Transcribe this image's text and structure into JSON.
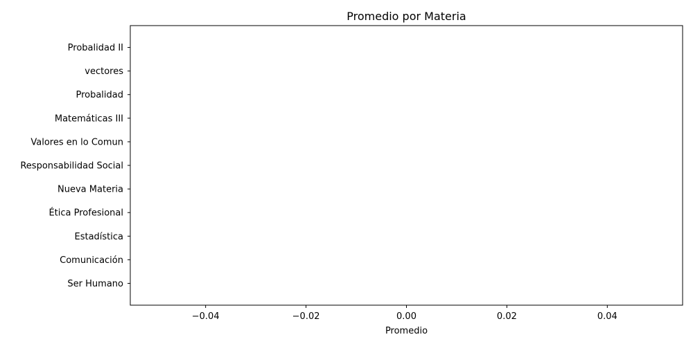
{
  "chart_data": {
    "type": "bar",
    "orientation": "horizontal",
    "title": "Promedio por Materia",
    "xlabel": "Promedio",
    "ylabel": "",
    "categories": [
      "Ser Humano",
      "Comunicación",
      "Estadística",
      "Ética Profesional",
      "Nueva Materia",
      "Responsabilidad Social ",
      "Valores en lo Comun",
      "Matemáticas III",
      "Probalidad",
      "vectores",
      "Probalidad II"
    ],
    "values": [
      0,
      0,
      0,
      0,
      0,
      0,
      0,
      0,
      0,
      0,
      0
    ],
    "xlim": [
      -0.055,
      0.055
    ],
    "xticks": [
      -0.04,
      -0.02,
      0.0,
      0.02,
      0.04
    ],
    "xtick_labels": [
      "−0.04",
      "−0.02",
      "0.00",
      "0.02",
      "0.04"
    ],
    "grid": false,
    "legend": "none"
  }
}
